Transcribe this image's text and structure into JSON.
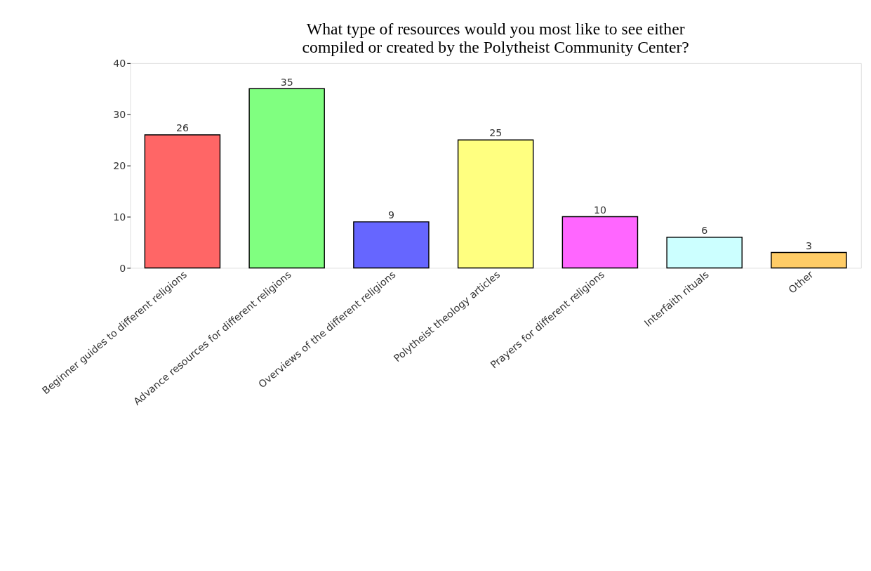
{
  "chart_data": {
    "type": "bar",
    "title": "What type of resources would you most like to see either compiled or created by the Polytheist Community Center?",
    "categories": [
      "Beginner guides to different religions",
      "Advance resources for different religions",
      "Overviews of the different religions",
      "Polytheist theology articles",
      "Prayers for different religions",
      "Interfaith rituals",
      "Other"
    ],
    "values": [
      26,
      35,
      9,
      25,
      10,
      6,
      3
    ],
    "colors": [
      "#ff6666",
      "#80ff80",
      "#6666ff",
      "#ffff80",
      "#ff66ff",
      "#ccffff",
      "#ffcc66"
    ],
    "ylim": [
      0,
      40
    ],
    "yticks": [
      0,
      10,
      20,
      30,
      40
    ],
    "grid": false,
    "legend": false,
    "data_labels": true
  }
}
